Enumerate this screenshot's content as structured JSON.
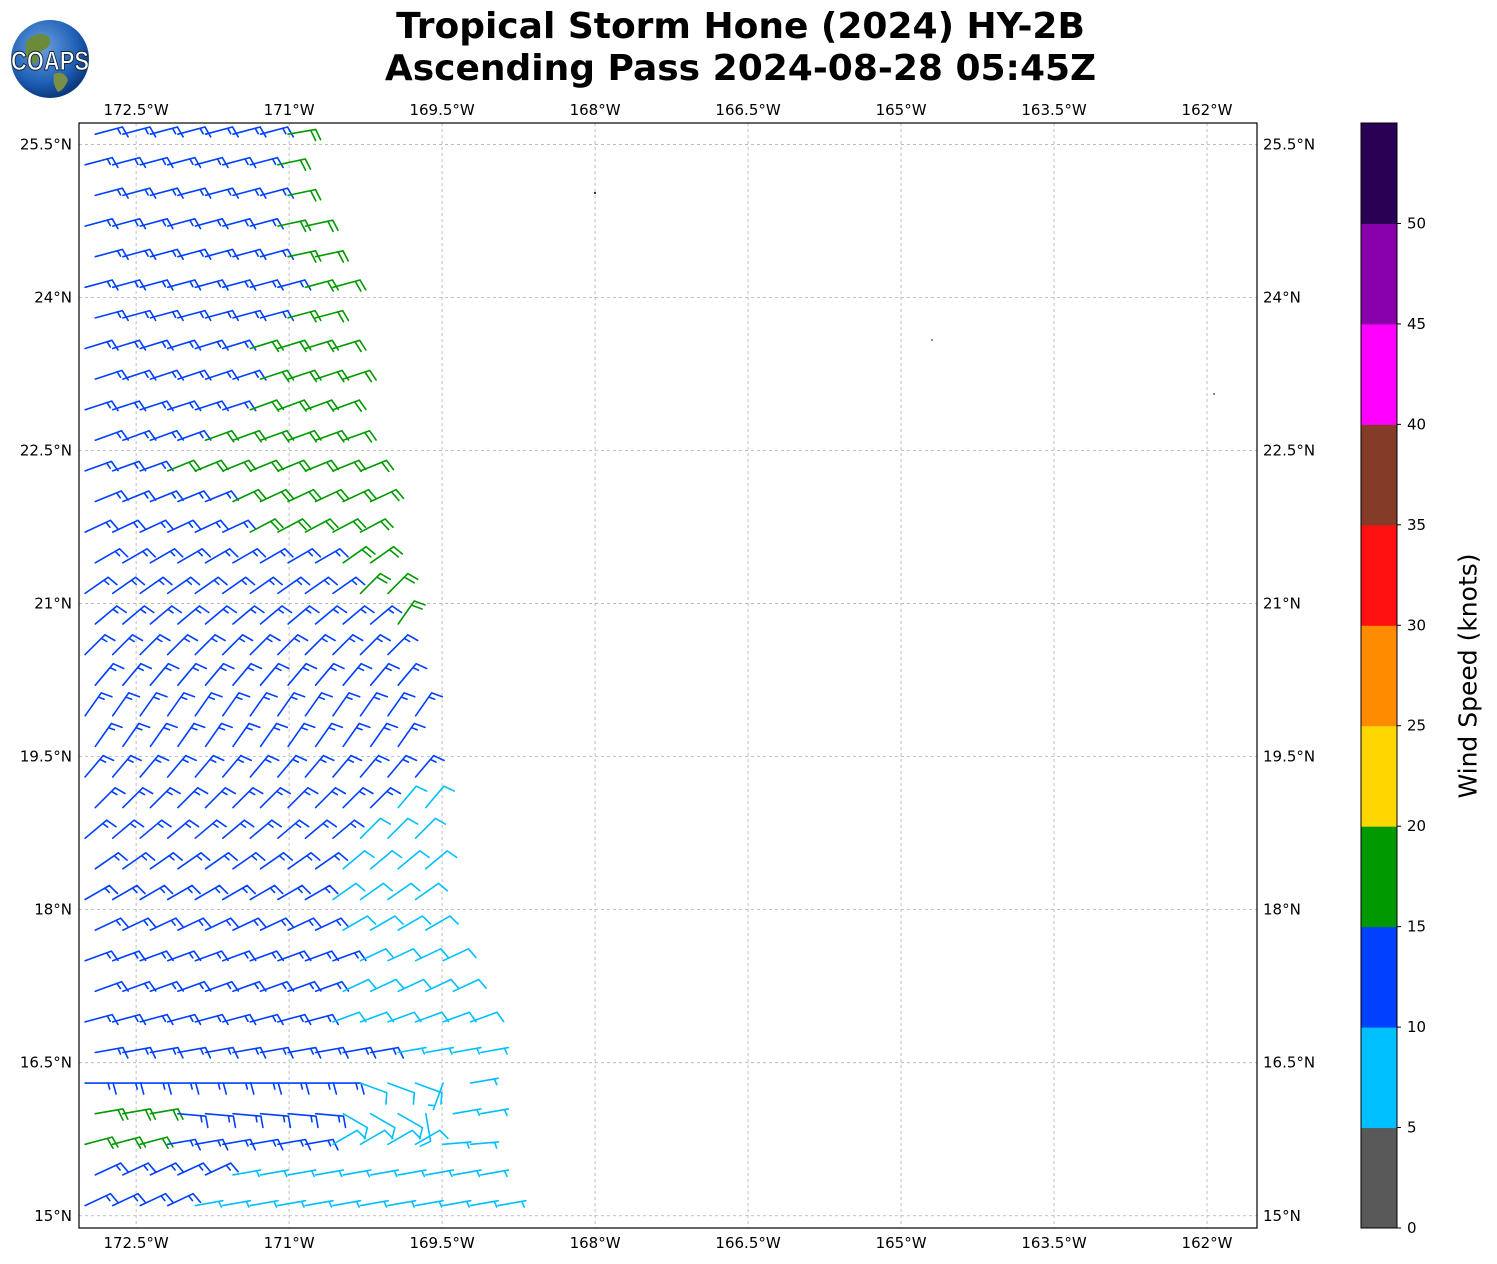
{
  "title_line1": "Tropical Storm Hone (2024) HY-2B",
  "title_line2": "Ascending Pass 2024-08-28 05:45Z",
  "logo_text": "COAPS",
  "chart_data": {
    "type": "wind-barb-map",
    "lon_ticks": [
      -172.5,
      -171,
      -169.5,
      -168,
      -166.5,
      -165,
      -163.5,
      -162
    ],
    "lon_tick_labels": [
      "172.5°W",
      "171°W",
      "169.5°W",
      "168°W",
      "166.5°W",
      "165°W",
      "163.5°W",
      "162°W"
    ],
    "lat_ticks": [
      25.5,
      24,
      22.5,
      21,
      19.5,
      18,
      16.5,
      15
    ],
    "lat_tick_labels": [
      "25.5°N",
      "24°N",
      "22.5°N",
      "21°N",
      "19.5°N",
      "18°N",
      "16.5°N",
      "15°N"
    ],
    "lon_range": [
      -173.06,
      -161.51
    ],
    "lat_range": [
      14.88,
      25.71
    ],
    "grid": true,
    "colorbar": {
      "label": "Wind Speed (knots)",
      "bounds": [
        0,
        5,
        10,
        15,
        20,
        25,
        30,
        35,
        40,
        45,
        50,
        55
      ],
      "tick_labels": [
        "0",
        "5",
        "10",
        "15",
        "20",
        "25",
        "30",
        "35",
        "40",
        "45",
        "50"
      ],
      "colors": [
        "#595959",
        "#00bfff",
        "#0040ff",
        "#009900",
        "#ffd700",
        "#ff8c00",
        "#ff1010",
        "#843c29",
        "#ff00ff",
        "#8800aa",
        "#2a0055"
      ]
    },
    "barb_rows_note_units": "lat deg N, lon deg E, speed knots, direction deg from",
    "barb_rows": [
      {
        "lat": 25.6,
        "lon_start": -172.9,
        "segments": [
          [
            -171.2,
            13,
            75
          ],
          [
            -170.75,
            18,
            80
          ]
        ]
      },
      {
        "lat": 25.3,
        "lon_start": -173.0,
        "segments": [
          [
            -171.3,
            13,
            75
          ],
          [
            -170.7,
            18,
            78
          ]
        ]
      },
      {
        "lat": 25.0,
        "lon_start": -172.9,
        "segments": [
          [
            -171.2,
            13,
            75
          ],
          [
            -170.6,
            18,
            78
          ]
        ]
      },
      {
        "lat": 24.7,
        "lon_start": -173.0,
        "segments": [
          [
            -171.3,
            13,
            75
          ],
          [
            -170.55,
            18,
            78
          ]
        ]
      },
      {
        "lat": 24.4,
        "lon_start": -172.9,
        "segments": [
          [
            -171.2,
            13,
            75
          ],
          [
            -170.45,
            18,
            78
          ]
        ]
      },
      {
        "lat": 24.1,
        "lon_start": -173.0,
        "segments": [
          [
            -171.1,
            13,
            75
          ],
          [
            -170.35,
            18,
            75
          ]
        ]
      },
      {
        "lat": 23.8,
        "lon_start": -172.9,
        "segments": [
          [
            -171.2,
            13,
            75
          ],
          [
            -170.3,
            18,
            75
          ]
        ]
      },
      {
        "lat": 23.5,
        "lon_start": -173.0,
        "segments": [
          [
            -171.4,
            13,
            73
          ],
          [
            -170.25,
            18,
            73
          ]
        ]
      },
      {
        "lat": 23.2,
        "lon_start": -172.9,
        "segments": [
          [
            -171.5,
            13,
            72
          ],
          [
            -170.15,
            18,
            72
          ]
        ]
      },
      {
        "lat": 22.9,
        "lon_start": -173.0,
        "segments": [
          [
            -171.6,
            13,
            72
          ],
          [
            -170.1,
            18,
            70
          ]
        ]
      },
      {
        "lat": 22.6,
        "lon_start": -172.9,
        "segments": [
          [
            -172.0,
            13,
            70
          ],
          [
            -170.0,
            18,
            70
          ]
        ]
      },
      {
        "lat": 22.3,
        "lon_start": -173.0,
        "segments": [
          [
            -172.3,
            13,
            70
          ],
          [
            -169.95,
            18,
            68
          ]
        ]
      },
      {
        "lat": 22.0,
        "lon_start": -172.9,
        "segments": [
          [
            -171.7,
            13,
            68
          ],
          [
            -169.9,
            18,
            65
          ]
        ]
      },
      {
        "lat": 21.7,
        "lon_start": -173.0,
        "segments": [
          [
            -171.4,
            13,
            65
          ],
          [
            -169.85,
            18,
            62
          ]
        ]
      },
      {
        "lat": 21.4,
        "lon_start": -172.9,
        "segments": [
          [
            -170.6,
            13,
            60
          ],
          [
            -169.8,
            18,
            55
          ]
        ]
      },
      {
        "lat": 21.1,
        "lon_start": -173.0,
        "segments": [
          [
            -170.4,
            13,
            55
          ],
          [
            -169.75,
            18,
            45
          ]
        ]
      },
      {
        "lat": 20.8,
        "lon_start": -172.9,
        "segments": [
          [
            -170.1,
            13,
            50
          ],
          [
            -169.7,
            18,
            35
          ]
        ]
      },
      {
        "lat": 20.5,
        "lon_start": -173.0,
        "segments": [
          [
            -169.9,
            13,
            45
          ],
          [
            -169.65,
            18,
            25
          ]
        ]
      },
      {
        "lat": 20.2,
        "lon_start": -172.9,
        "segments": [
          [
            -169.75,
            13,
            40
          ],
          [
            -169.6,
            18,
            20
          ]
        ]
      },
      {
        "lat": 19.9,
        "lon_start": -173.0,
        "segments": [
          [
            -169.55,
            13,
            35
          ]
        ]
      },
      {
        "lat": 19.6,
        "lon_start": -172.9,
        "segments": [
          [
            -169.5,
            13,
            35
          ]
        ]
      },
      {
        "lat": 19.3,
        "lon_start": -173.0,
        "segments": [
          [
            -169.45,
            13,
            40
          ]
        ]
      },
      {
        "lat": 19.0,
        "lon_start": -172.9,
        "segments": [
          [
            -170.1,
            13,
            45
          ],
          [
            -169.45,
            8,
            40
          ]
        ]
      },
      {
        "lat": 18.7,
        "lon_start": -173.0,
        "segments": [
          [
            -170.5,
            13,
            50
          ],
          [
            -169.4,
            8,
            45
          ]
        ]
      },
      {
        "lat": 18.4,
        "lon_start": -172.9,
        "segments": [
          [
            -170.6,
            13,
            55
          ],
          [
            -169.35,
            8,
            50
          ]
        ]
      },
      {
        "lat": 18.1,
        "lon_start": -173.0,
        "segments": [
          [
            -170.8,
            13,
            60
          ],
          [
            -169.3,
            8,
            55
          ]
        ]
      },
      {
        "lat": 17.8,
        "lon_start": -172.9,
        "segments": [
          [
            -170.6,
            13,
            65
          ],
          [
            -169.25,
            8,
            60
          ]
        ]
      },
      {
        "lat": 17.5,
        "lon_start": -173.0,
        "segments": [
          [
            -170.5,
            13,
            70
          ],
          [
            -169.15,
            8,
            65
          ]
        ]
      },
      {
        "lat": 17.2,
        "lon_start": -172.9,
        "segments": [
          [
            -170.7,
            13,
            70
          ],
          [
            -169.3,
            8,
            65
          ],
          [
            -169.05,
            3,
            65
          ]
        ]
      },
      {
        "lat": 16.9,
        "lon_start": -173.0,
        "segments": [
          [
            -170.8,
            13,
            75
          ],
          [
            -168.95,
            8,
            70
          ]
        ]
      },
      {
        "lat": 16.6,
        "lon_start": -172.9,
        "segments": [
          [
            -170.0,
            13,
            80
          ],
          [
            -168.85,
            7,
            80
          ]
        ]
      },
      {
        "lat": 16.3,
        "lon_start": -173.0,
        "segments": [
          [
            -170.3,
            13,
            90
          ],
          [
            -169.6,
            8,
            110
          ],
          [
            -169.3,
            7,
            200
          ],
          [
            -169.0,
            7,
            80
          ],
          [
            -168.85,
            3,
            80
          ]
        ]
      },
      {
        "lat": 16.0,
        "lon_start": -172.9,
        "segments": [
          [
            -172.3,
            18,
            80
          ],
          [
            -170.5,
            13,
            95
          ],
          [
            -169.8,
            8,
            120
          ],
          [
            -169.5,
            8,
            170
          ],
          [
            -168.75,
            7,
            80
          ]
        ]
      },
      {
        "lat": 15.7,
        "lon_start": -173.0,
        "segments": [
          [
            -172.2,
            18,
            75
          ],
          [
            -170.7,
            13,
            80
          ],
          [
            -169.5,
            8,
            60
          ],
          [
            -168.75,
            7,
            85
          ]
        ]
      },
      {
        "lat": 15.4,
        "lon_start": -172.9,
        "segments": [
          [
            -171.6,
            13,
            65
          ],
          [
            -168.85,
            7,
            80
          ],
          [
            -168.7,
            3,
            80
          ]
        ]
      },
      {
        "lat": 15.1,
        "lon_start": -173.0,
        "segments": [
          [
            -172.0,
            13,
            65
          ],
          [
            -168.6,
            7,
            80
          ]
        ]
      }
    ]
  }
}
